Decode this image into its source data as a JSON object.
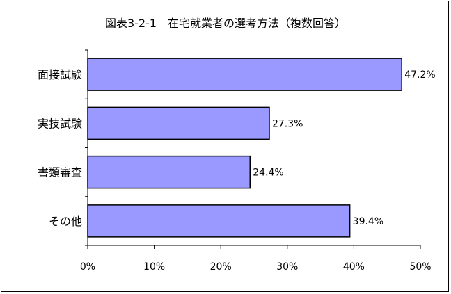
{
  "chart_data": {
    "type": "bar",
    "orientation": "horizontal",
    "title": "図表3-2-1　在宅就業者の選考方法（複数回答）",
    "categories": [
      "面接試験",
      "実技試験",
      "書類審査",
      "その他"
    ],
    "values": [
      47.2,
      27.3,
      24.4,
      39.4
    ],
    "data_labels": [
      "47.2%",
      "27.3%",
      "24.4%",
      "39.4%"
    ],
    "xlim": [
      0,
      50
    ],
    "xticks": [
      0,
      10,
      20,
      30,
      40,
      50
    ],
    "xtick_labels": [
      "0%",
      "10%",
      "20%",
      "30%",
      "40%",
      "50%"
    ],
    "xlabel": "",
    "ylabel": "",
    "grid": false,
    "legend": "none",
    "bar_color": "#9999ff",
    "bar_stroke": "#000000"
  }
}
